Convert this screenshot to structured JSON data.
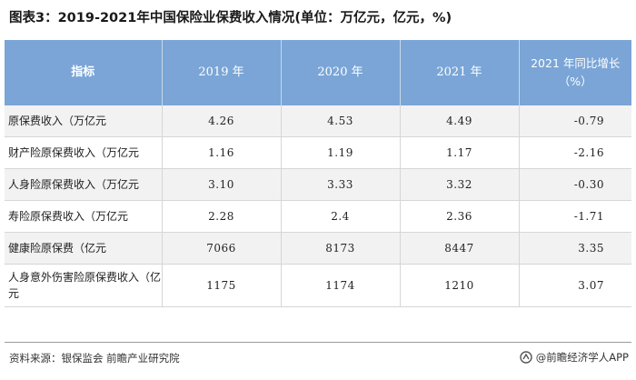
{
  "title": "图表3：2019-2021年中国保险业保费收入情况(单位：万亿元，亿元，%)",
  "table": {
    "headers": [
      "指标",
      "2019 年",
      "2020 年",
      "2021 年",
      "2021 年同比增长（%）"
    ],
    "rows": [
      {
        "label": "原保费收入（万亿元",
        "y2019": "4.26",
        "y2020": "4.53",
        "y2021": "4.49",
        "growth": "-0.79"
      },
      {
        "label": "财产险原保费收入（万亿元",
        "y2019": "1.16",
        "y2020": "1.19",
        "y2021": "1.17",
        "growth": "-2.16"
      },
      {
        "label": "人身险原保费收入（万亿元",
        "y2019": "3.10",
        "y2020": "3.33",
        "y2021": "3.32",
        "growth": "-0.30"
      },
      {
        "label": "寿险原保费收入（万亿元",
        "y2019": "2.28",
        "y2020": "2.4",
        "y2021": "2.36",
        "growth": "-1.71"
      },
      {
        "label": "健康险原保费（亿元",
        "y2019": "7066",
        "y2020": "8173",
        "y2021": "8447",
        "growth": "3.35"
      },
      {
        "label": "人身意外伤害险原保费收入（亿元",
        "y2019": "1175",
        "y2020": "1174",
        "y2021": "1210",
        "growth": "3.07"
      }
    ]
  },
  "footer": {
    "source": "资料来源：银保监会 前瞻产业研究院",
    "brand": "@前瞻经济学人APP",
    "brand_icon": "qianzhan-logo-icon"
  }
}
